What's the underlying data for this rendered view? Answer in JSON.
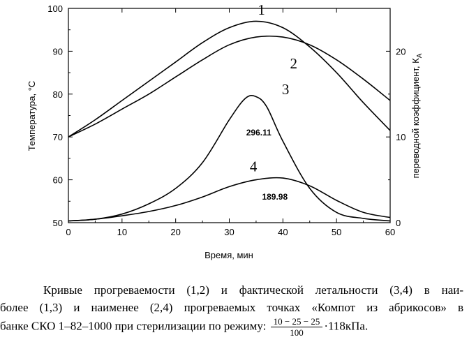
{
  "chart_data": {
    "type": "line",
    "title": "",
    "xlabel": "Время, мин",
    "ylabel_left": "Температура, °С",
    "ylabel_right": "переводной коэффициент, К",
    "ylabel_right_sub": "А",
    "xlim": [
      0,
      60
    ],
    "ylim_left": [
      50,
      100
    ],
    "ylim_right": [
      0,
      25
    ],
    "x_ticks": [
      "0",
      "10",
      "20",
      "30",
      "40",
      "50",
      "60"
    ],
    "y_left_ticks": [
      "50",
      "60",
      "70",
      "80",
      "90",
      "100"
    ],
    "y_right_ticks": [
      "0",
      "10",
      "20"
    ],
    "grid": false,
    "series": [
      {
        "name": "1",
        "axis": "left",
        "x": [
          0,
          5,
          10,
          15,
          20,
          25,
          30,
          35,
          40,
          45,
          50,
          55,
          60
        ],
        "y": [
          70,
          74,
          78.5,
          83,
          87.5,
          92,
          95.5,
          97,
          95.5,
          91,
          85,
          78,
          71.5
        ]
      },
      {
        "name": "2",
        "axis": "left",
        "x": [
          0,
          5,
          10,
          15,
          20,
          25,
          30,
          35,
          40,
          45,
          50,
          55,
          60
        ],
        "y": [
          70,
          73,
          76.5,
          80,
          84,
          88,
          91.5,
          93.3,
          93.3,
          91.5,
          88,
          83.5,
          78.5
        ]
      },
      {
        "name": "3",
        "axis": "right",
        "x": [
          0,
          5,
          10,
          15,
          20,
          25,
          30,
          33,
          35,
          37,
          40,
          45,
          50,
          55,
          60
        ],
        "y": [
          0.2,
          0.4,
          1.0,
          2.2,
          4.0,
          7.0,
          12.0,
          14.5,
          14.7,
          13.5,
          9.5,
          4.0,
          1.2,
          0.5,
          0.2
        ]
      },
      {
        "name": "4",
        "axis": "right",
        "x": [
          0,
          5,
          10,
          15,
          20,
          25,
          30,
          35,
          40,
          45,
          50,
          55,
          60
        ],
        "y": [
          0.2,
          0.4,
          0.8,
          1.3,
          2.0,
          3.0,
          4.2,
          5.0,
          5.2,
          4.3,
          2.6,
          1.2,
          0.6
        ]
      }
    ],
    "annotations": [
      {
        "text": "296.11",
        "x": 35.5,
        "y_right": 10.5
      },
      {
        "text": "189.98",
        "x": 38.5,
        "y_right": 3.0
      }
    ]
  },
  "caption": {
    "line1": "Кривые прогреваемости (1,2) и фактической летальности (3,4) в наи-",
    "line2": "более (1,3) и наименее (2,4) прогреваемых точках «Компот из абрикосов» в",
    "line3_prefix": "банке СКО 1–82–1000 при стерилизации по режиму:",
    "fraction_numerator": "10 − 25 − 25",
    "fraction_denominator": "100",
    "line3_suffix": "·118кПа."
  }
}
